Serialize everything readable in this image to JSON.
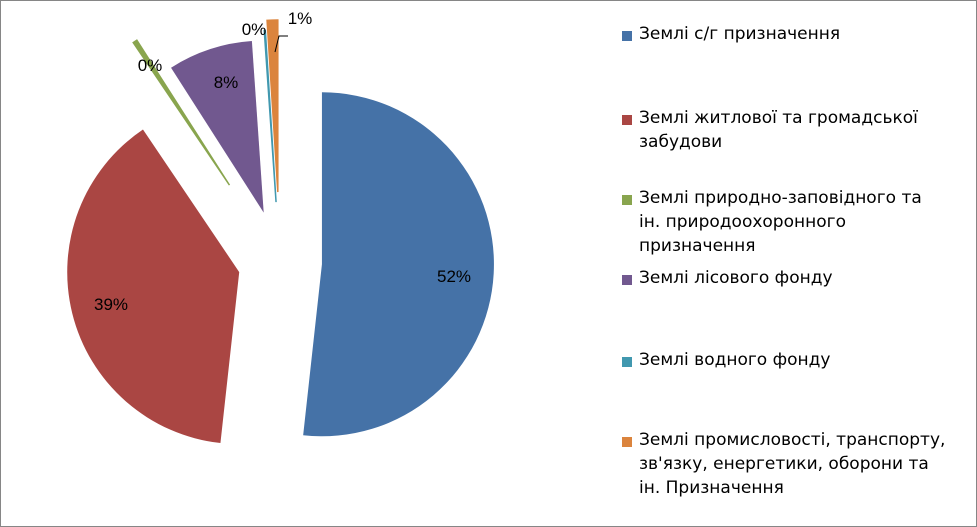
{
  "chart_data": {
    "type": "pie",
    "title": "",
    "legend_position": "right",
    "slices": [
      {
        "name": "Землі с/г призначення",
        "value": 52,
        "label": "52%",
        "color": "#4572A7"
      },
      {
        "name": "Землі житлової та громадської забудови",
        "value": 39,
        "label": "39%",
        "color": "#AA4643"
      },
      {
        "name": "Землі природно-заповідного та ін. природоохоронного призначення",
        "value": 0.4,
        "label": "0%",
        "color": "#89A54E"
      },
      {
        "name": "Землі лісового фонду",
        "value": 8,
        "label": "8%",
        "color": "#71588F"
      },
      {
        "name": "Землі водного фонду",
        "value": 0.1,
        "label": "0%",
        "color": "#4198AF"
      },
      {
        "name": "Землі промисловості, транспорту, зв'язку, енергетики, оборони та ін. Призначення",
        "value": 1,
        "label": "1%",
        "color": "#DB843D"
      }
    ]
  },
  "legend": {
    "items": [
      {
        "label": "Землі с/г призначення",
        "color": "#4572A7"
      },
      {
        "label": "Землі житлової та громадської\nзабудови",
        "color": "#AA4643"
      },
      {
        "label": "Землі природно-заповідного та\nін. природоохоронного\nпризначення",
        "color": "#89A54E"
      },
      {
        "label": "Землі лісового фонду",
        "color": "#71588F"
      },
      {
        "label": "Землі водного фонду",
        "color": "#4198AF"
      },
      {
        "label": "Землі промисловості, транспорту,\nзв'язку, енергетики,  оборони та\nін. Призначення",
        "color": "#DB843D"
      }
    ]
  }
}
